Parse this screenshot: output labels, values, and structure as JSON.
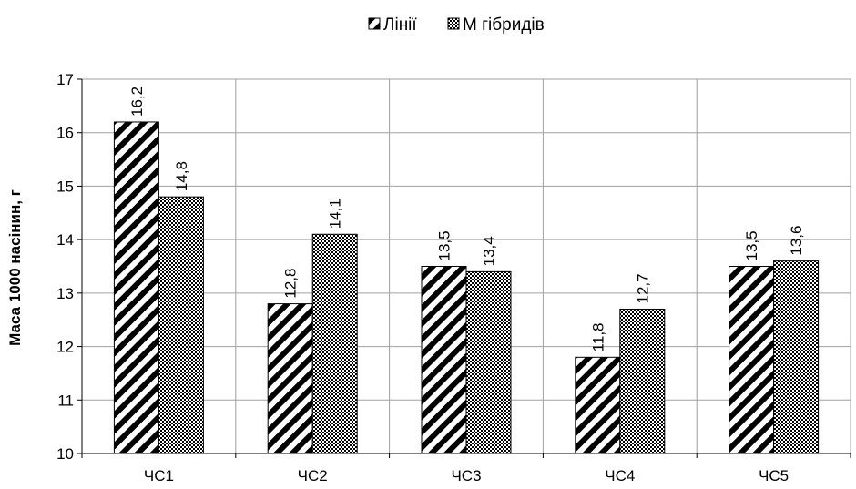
{
  "chart_data": {
    "type": "bar",
    "title": "",
    "xlabel": "",
    "ylabel": "Маса 1000 насінин, г",
    "ylim": [
      10,
      17
    ],
    "yticks": [
      "10",
      "11",
      "12",
      "13",
      "14",
      "15",
      "16",
      "17"
    ],
    "categories": [
      "ЧС1",
      "ЧС2",
      "ЧС3",
      "ЧС4",
      "ЧС5"
    ],
    "grid": true,
    "legend_position": "top",
    "series": [
      {
        "name": "Лінії",
        "pattern": "diagonal-hatch",
        "values": [
          16.2,
          12.8,
          13.5,
          11.8,
          13.5
        ],
        "labels": [
          "16,2",
          "12,8",
          "13,5",
          "11,8",
          "13,5"
        ]
      },
      {
        "name": "М гібридів",
        "pattern": "checker",
        "values": [
          14.8,
          14.1,
          13.4,
          12.7,
          13.6
        ],
        "labels": [
          "14,8",
          "14,1",
          "13,4",
          "12,7",
          "13,6"
        ]
      }
    ]
  }
}
